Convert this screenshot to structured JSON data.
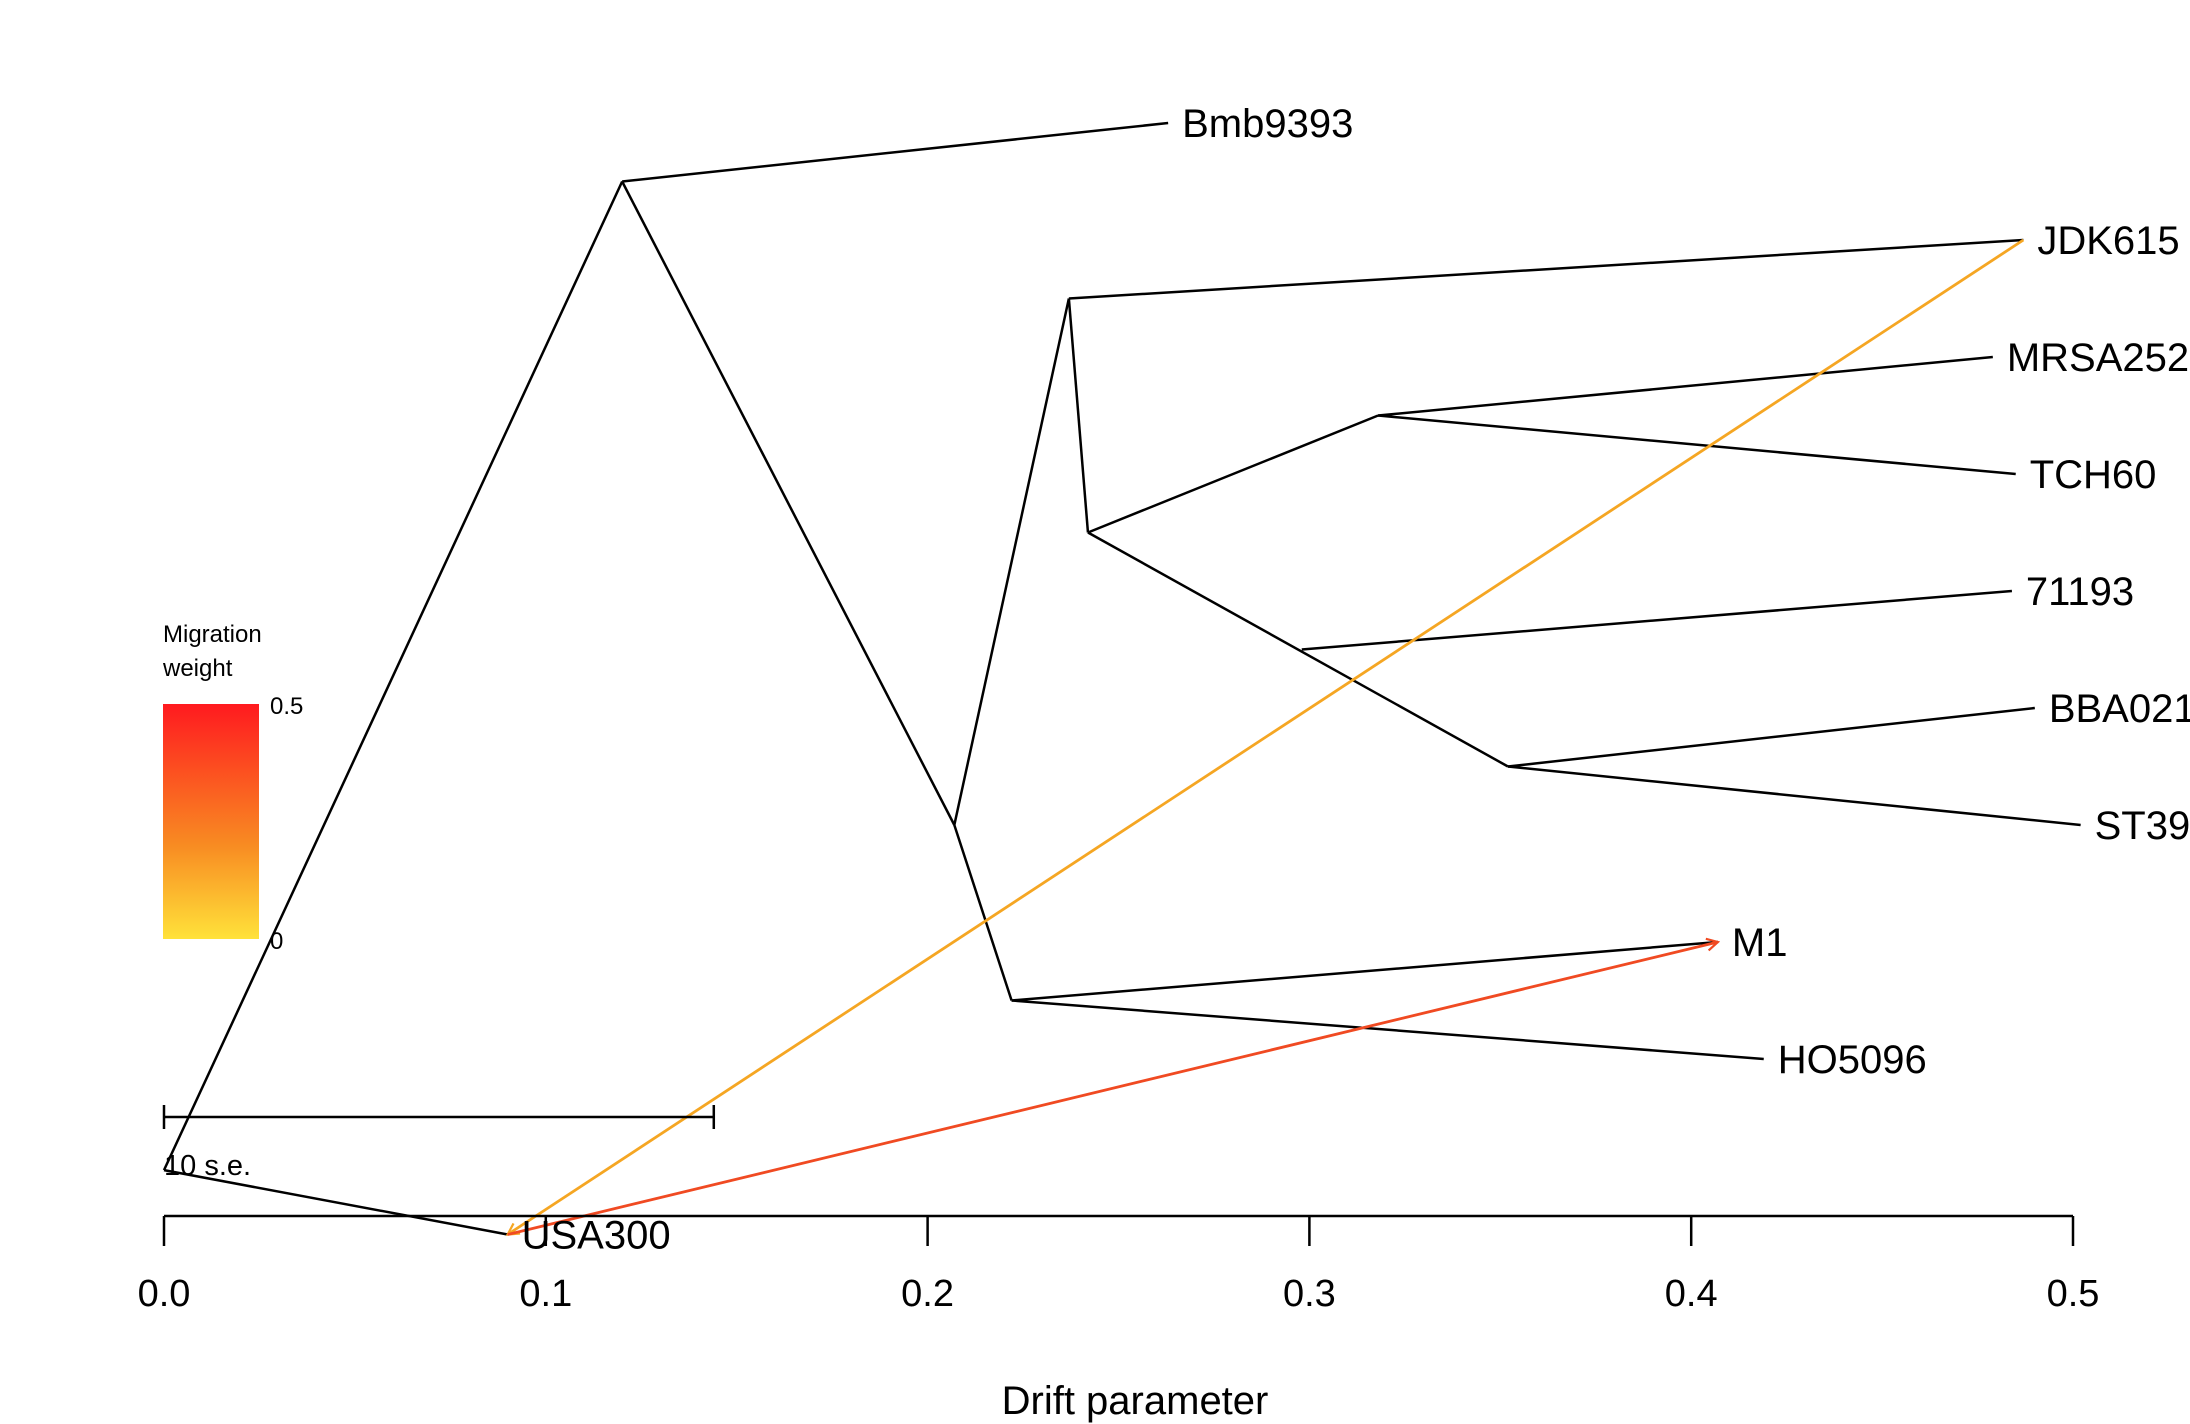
{
  "chart_data": {
    "type": "tree",
    "xlabel": "Drift parameter",
    "xlim": [
      0.0,
      0.5
    ],
    "x_ticks": [
      0.0,
      0.1,
      0.2,
      0.3,
      0.4,
      0.5
    ],
    "x_tick_labels": [
      "0.0",
      "0.1",
      "0.2",
      "0.3",
      "0.4",
      "0.5"
    ],
    "nodes": [
      {
        "id": "root",
        "drift": 0.0,
        "row": 8.95
      },
      {
        "id": "USA300",
        "drift": 0.09,
        "row": 9.5,
        "label": "USA300"
      },
      {
        "id": "n_a",
        "drift": 0.12,
        "row": 0.5
      },
      {
        "id": "Bmb9393",
        "drift": 0.263,
        "row": 0.0,
        "label": "Bmb9393"
      },
      {
        "id": "n_b",
        "drift": 0.207,
        "row": 6.0
      },
      {
        "id": "n_c",
        "drift": 0.237,
        "row": 1.5
      },
      {
        "id": "JDK615",
        "drift": 0.487,
        "row": 1.0,
        "label": "JDK615"
      },
      {
        "id": "n_d",
        "drift": 0.242,
        "row": 3.5
      },
      {
        "id": "n_e",
        "drift": 0.318,
        "row": 2.5
      },
      {
        "id": "MRSA252",
        "drift": 0.479,
        "row": 2.0,
        "label": "MRSA252"
      },
      {
        "id": "TCH60",
        "drift": 0.485,
        "row": 3.0,
        "label": "TCH60"
      },
      {
        "id": "n_f",
        "drift": 0.298,
        "row": 4.5
      },
      {
        "id": "71193",
        "drift": 0.484,
        "row": 4.0,
        "label": "71193"
      },
      {
        "id": "n_g",
        "drift": 0.352,
        "row": 5.5
      },
      {
        "id": "BBA021",
        "drift": 0.49,
        "row": 5.0,
        "label": "BBA021"
      },
      {
        "id": "ST39",
        "drift": 0.502,
        "row": 6.0,
        "label": "ST39"
      },
      {
        "id": "n_h",
        "drift": 0.222,
        "row": 7.5
      },
      {
        "id": "M1",
        "drift": 0.407,
        "row": 7.0,
        "label": "M1"
      },
      {
        "id": "HO5096",
        "drift": 0.419,
        "row": 8.0,
        "label": "HO5096"
      }
    ],
    "edges": [
      [
        "root",
        "USA300"
      ],
      [
        "root",
        "n_a"
      ],
      [
        "n_a",
        "Bmb9393"
      ],
      [
        "n_a",
        "n_b"
      ],
      [
        "n_b",
        "n_c"
      ],
      [
        "n_c",
        "JDK615"
      ],
      [
        "n_c",
        "n_d"
      ],
      [
        "n_d",
        "n_e"
      ],
      [
        "n_e",
        "MRSA252"
      ],
      [
        "n_e",
        "TCH60"
      ],
      [
        "n_d",
        "n_g"
      ],
      [
        "n_g",
        "BBA021"
      ],
      [
        "n_g",
        "ST39"
      ],
      [
        "n_f",
        "71193"
      ],
      [
        "n_b",
        "n_h"
      ],
      [
        "n_h",
        "M1"
      ],
      [
        "n_h",
        "HO5096"
      ]
    ],
    "migration_edges": [
      {
        "from": "JDK615",
        "to": "USA300",
        "weight": 0.15,
        "color": "#f5a623"
      },
      {
        "from": "USA300",
        "to": "M1",
        "weight": 0.38,
        "color": "#f04a22"
      }
    ],
    "legend": {
      "title_lines": [
        "Migration",
        "weight"
      ],
      "max_label": "0.5",
      "min_label": "0",
      "color_high": "#ff1a1f",
      "color_mid": "#f88b22",
      "color_low": "#ffe23a",
      "placement": "left"
    },
    "scale_bar": {
      "label": "10 s.e.",
      "length": 0.144
    }
  }
}
